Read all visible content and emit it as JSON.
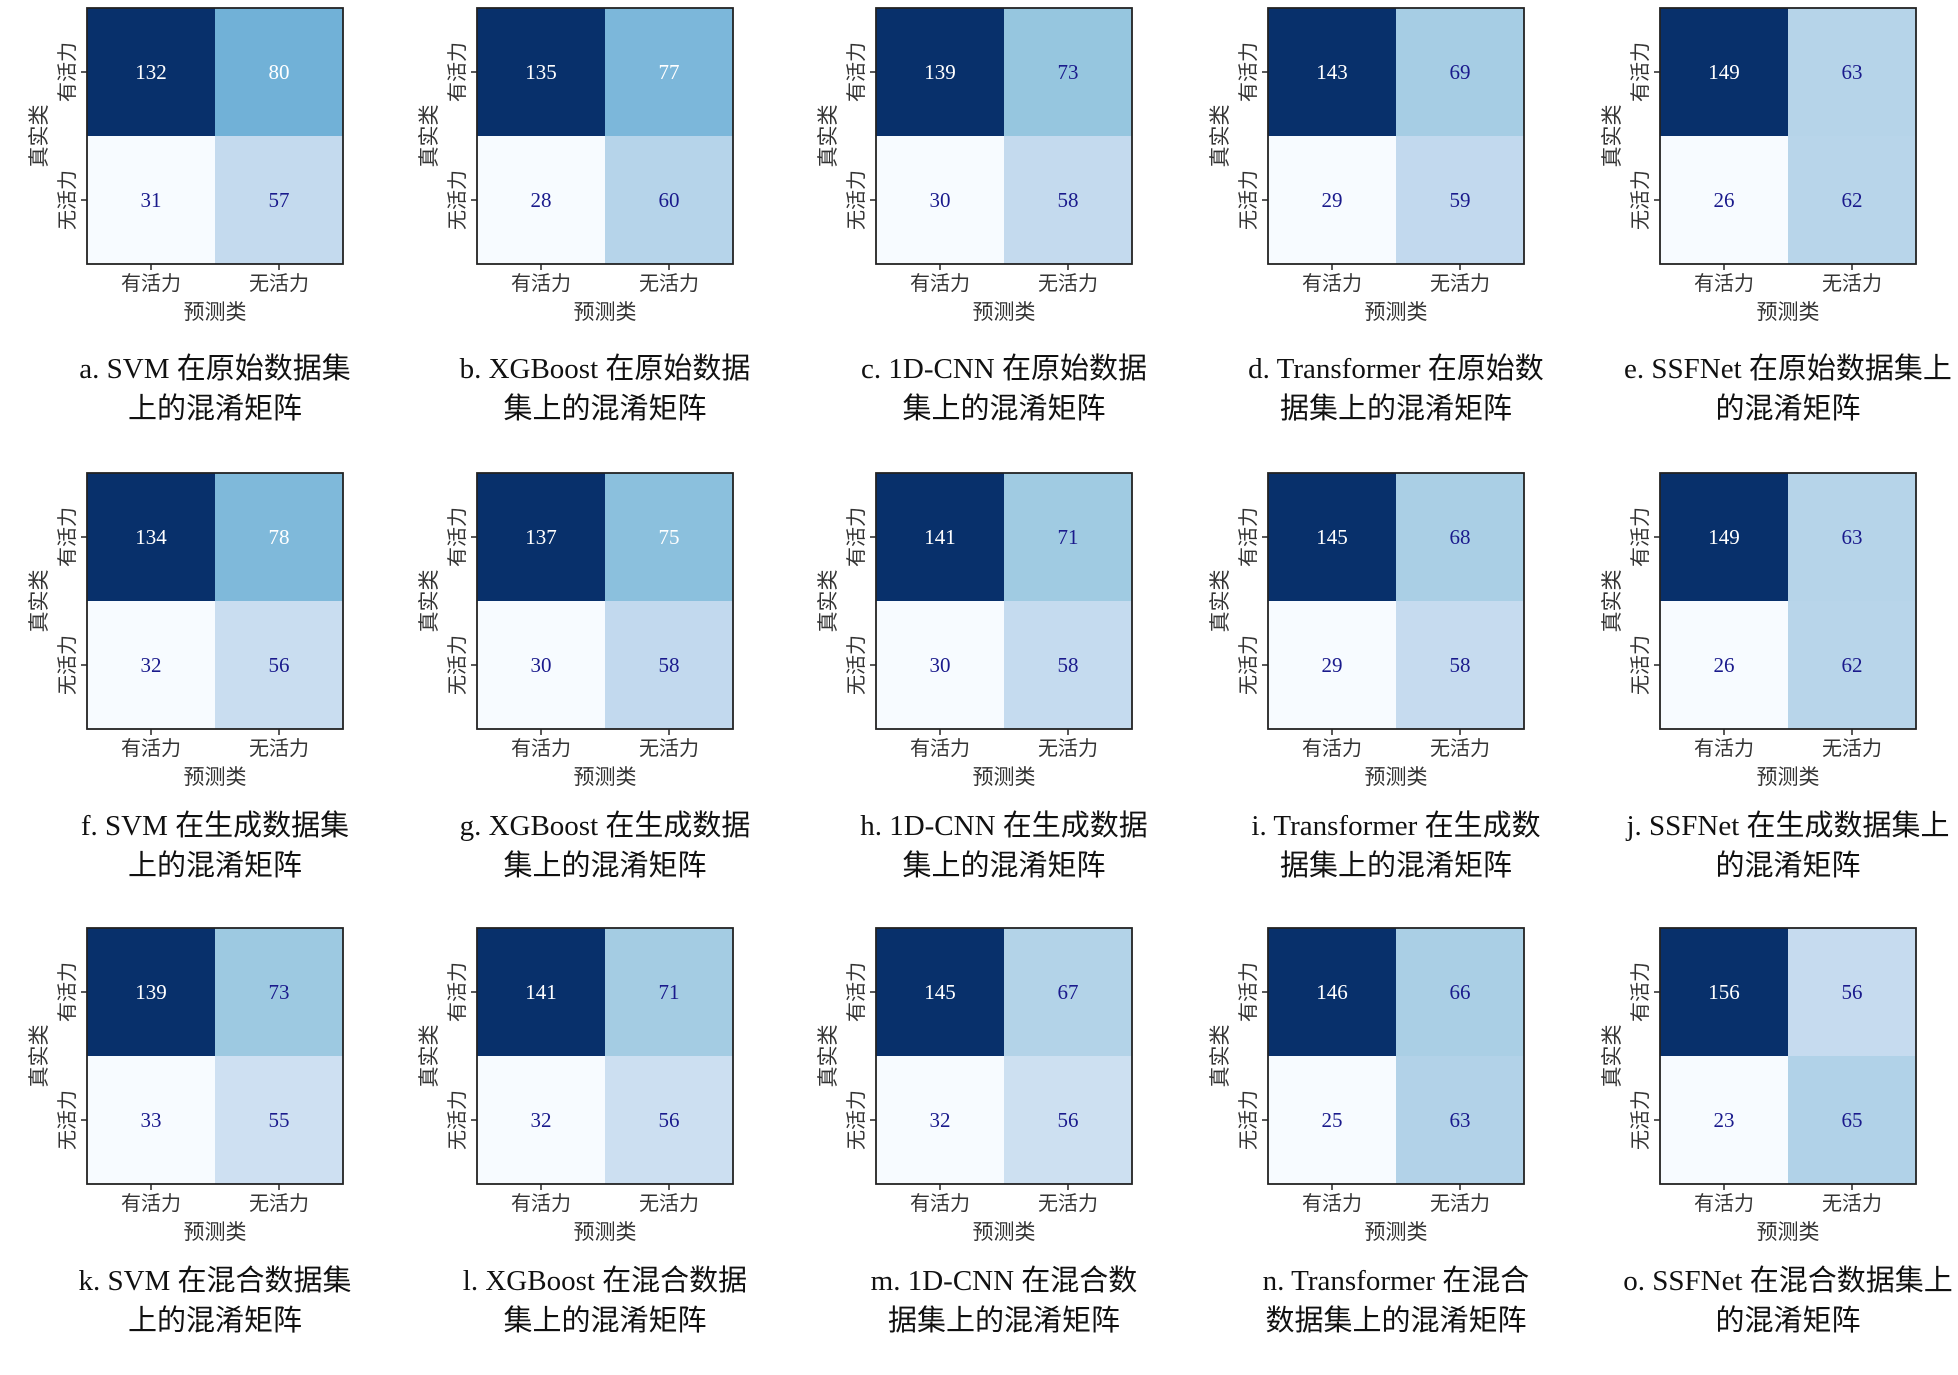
{
  "chart_data": [
    {
      "type": "heatmap",
      "id": "a",
      "caption_lines": [
        "a. SVM 在原始数据集",
        "上的混淆矩阵"
      ],
      "row_labels": [
        "有活力",
        "无活力"
      ],
      "col_labels": [
        "有活力",
        "无活力"
      ],
      "ylabel": "真实类",
      "xlabel": "预测类",
      "values": [
        [
          132,
          80
        ],
        [
          31,
          57
        ]
      ]
    },
    {
      "type": "heatmap",
      "id": "b",
      "caption_lines": [
        "b. XGBoost 在原始数据",
        "集上的混淆矩阵"
      ],
      "row_labels": [
        "有活力",
        "无活力"
      ],
      "col_labels": [
        "有活力",
        "无活力"
      ],
      "ylabel": "真实类",
      "xlabel": "预测类",
      "values": [
        [
          135,
          77
        ],
        [
          28,
          60
        ]
      ]
    },
    {
      "type": "heatmap",
      "id": "c",
      "caption_lines": [
        "c. 1D-CNN 在原始数据",
        "集上的混淆矩阵"
      ],
      "row_labels": [
        "有活力",
        "无活力"
      ],
      "col_labels": [
        "有活力",
        "无活力"
      ],
      "ylabel": "真实类",
      "xlabel": "预测类",
      "values": [
        [
          139,
          73
        ],
        [
          30,
          58
        ]
      ]
    },
    {
      "type": "heatmap",
      "id": "d",
      "caption_lines": [
        "d. Transformer 在原始数",
        "据集上的混淆矩阵"
      ],
      "row_labels": [
        "有活力",
        "无活力"
      ],
      "col_labels": [
        "有活力",
        "无活力"
      ],
      "ylabel": "真实类",
      "xlabel": "预测类",
      "values": [
        [
          143,
          69
        ],
        [
          29,
          59
        ]
      ]
    },
    {
      "type": "heatmap",
      "id": "e",
      "caption_lines": [
        "e. SSFNet 在原始数据集上",
        "的混淆矩阵"
      ],
      "row_labels": [
        "有活力",
        "无活力"
      ],
      "col_labels": [
        "有活力",
        "无活力"
      ],
      "ylabel": "真实类",
      "xlabel": "预测类",
      "values": [
        [
          149,
          63
        ],
        [
          26,
          62
        ]
      ]
    },
    {
      "type": "heatmap",
      "id": "f",
      "caption_lines": [
        "f. SVM 在生成数据集",
        "上的混淆矩阵"
      ],
      "row_labels": [
        "有活力",
        "无活力"
      ],
      "col_labels": [
        "有活力",
        "无活力"
      ],
      "ylabel": "真实类",
      "xlabel": "预测类",
      "values": [
        [
          134,
          78
        ],
        [
          32,
          56
        ]
      ]
    },
    {
      "type": "heatmap",
      "id": "g",
      "caption_lines": [
        "g. XGBoost 在生成数据",
        "集上的混淆矩阵"
      ],
      "row_labels": [
        "有活力",
        "无活力"
      ],
      "col_labels": [
        "有活力",
        "无活力"
      ],
      "ylabel": "真实类",
      "xlabel": "预测类",
      "values": [
        [
          137,
          75
        ],
        [
          30,
          58
        ]
      ]
    },
    {
      "type": "heatmap",
      "id": "h",
      "caption_lines": [
        "h. 1D-CNN 在生成数据",
        "集上的混淆矩阵"
      ],
      "row_labels": [
        "有活力",
        "无活力"
      ],
      "col_labels": [
        "有活力",
        "无活力"
      ],
      "ylabel": "真实类",
      "xlabel": "预测类",
      "values": [
        [
          141,
          71
        ],
        [
          30,
          58
        ]
      ]
    },
    {
      "type": "heatmap",
      "id": "i",
      "caption_lines": [
        "i. Transformer 在生成数",
        "据集上的混淆矩阵"
      ],
      "row_labels": [
        "有活力",
        "无活力"
      ],
      "col_labels": [
        "有活力",
        "无活力"
      ],
      "ylabel": "真实类",
      "xlabel": "预测类",
      "values": [
        [
          145,
          68
        ],
        [
          29,
          58
        ]
      ]
    },
    {
      "type": "heatmap",
      "id": "j",
      "caption_lines": [
        "j. SSFNet 在生成数据集上",
        "的混淆矩阵"
      ],
      "row_labels": [
        "有活力",
        "无活力"
      ],
      "col_labels": [
        "有活力",
        "无活力"
      ],
      "ylabel": "真实类",
      "xlabel": "预测类",
      "values": [
        [
          149,
          63
        ],
        [
          26,
          62
        ]
      ]
    },
    {
      "type": "heatmap",
      "id": "k",
      "caption_lines": [
        "k. SVM 在混合数据集",
        "上的混淆矩阵"
      ],
      "row_labels": [
        "有活力",
        "无活力"
      ],
      "col_labels": [
        "有活力",
        "无活力"
      ],
      "ylabel": "真实类",
      "xlabel": "预测类",
      "values": [
        [
          139,
          73
        ],
        [
          33,
          55
        ]
      ]
    },
    {
      "type": "heatmap",
      "id": "l",
      "caption_lines": [
        "l. XGBoost 在混合数据",
        "集上的混淆矩阵"
      ],
      "row_labels": [
        "有活力",
        "无活力"
      ],
      "col_labels": [
        "有活力",
        "无活力"
      ],
      "ylabel": "真实类",
      "xlabel": "预测类",
      "values": [
        [
          141,
          71
        ],
        [
          32,
          56
        ]
      ]
    },
    {
      "type": "heatmap",
      "id": "m",
      "caption_lines": [
        "m. 1D-CNN 在混合数",
        "据集上的混淆矩阵"
      ],
      "row_labels": [
        "有活力",
        "无活力"
      ],
      "col_labels": [
        "有活力",
        "无活力"
      ],
      "ylabel": "真实类",
      "xlabel": "预测类",
      "values": [
        [
          145,
          67
        ],
        [
          32,
          56
        ]
      ]
    },
    {
      "type": "heatmap",
      "id": "n",
      "caption_lines": [
        "n. Transformer 在混合",
        "数据集上的混淆矩阵"
      ],
      "row_labels": [
        "有活力",
        "无活力"
      ],
      "col_labels": [
        "有活力",
        "无活力"
      ],
      "ylabel": "真实类",
      "xlabel": "预测类",
      "values": [
        [
          146,
          66
        ],
        [
          25,
          63
        ]
      ]
    },
    {
      "type": "heatmap",
      "id": "o",
      "caption_lines": [
        "o. SSFNet 在混合数据集上",
        "的混淆矩阵"
      ],
      "row_labels": [
        "有活力",
        "无活力"
      ],
      "col_labels": [
        "有活力",
        "无活力"
      ],
      "ylabel": "真实类",
      "xlabel": "预测类",
      "values": [
        [
          156,
          56
        ],
        [
          23,
          65
        ]
      ]
    }
  ],
  "colormap": {
    "name": "Blues",
    "stops": [
      "#f7fbff",
      "#deebf7",
      "#c6dbef",
      "#9ecae1",
      "#6baed6",
      "#4292c6",
      "#2171b5",
      "#08519c",
      "#08306b"
    ],
    "dark_text": "#1a1a8c",
    "light_text": "#ffffff"
  }
}
